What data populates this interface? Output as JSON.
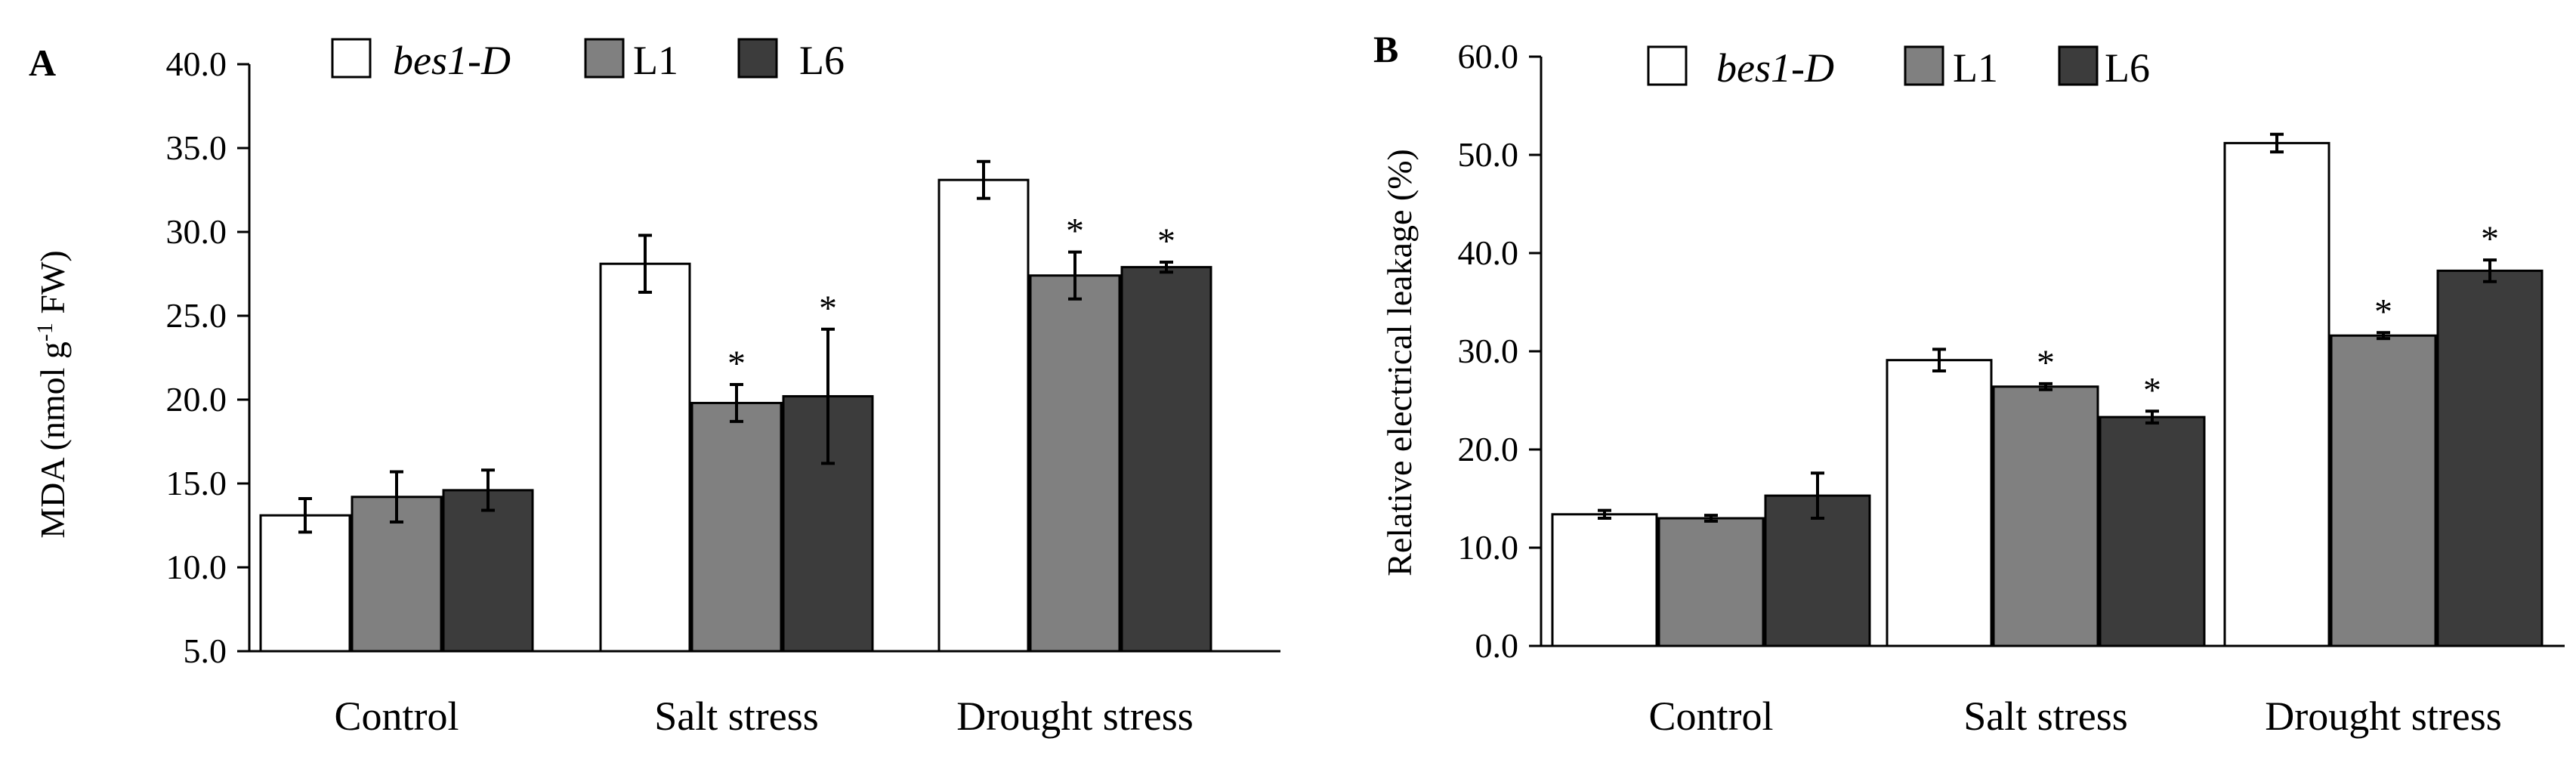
{
  "chart_data": [
    {
      "type": "bar",
      "panel_label": "A",
      "categories": [
        "Control",
        "Salt stress",
        "Drought stress"
      ],
      "series": [
        {
          "name": "bes1-D",
          "values": [
            13.1,
            28.1,
            33.1
          ],
          "errors": [
            1.0,
            1.7,
            1.1
          ],
          "color": "#ffffff"
        },
        {
          "name": "L1",
          "values": [
            14.2,
            19.8,
            27.4
          ],
          "errors": [
            1.5,
            1.1,
            1.4
          ],
          "color": "#808080"
        },
        {
          "name": "L6",
          "values": [
            14.6,
            20.2,
            27.9
          ],
          "errors": [
            1.2,
            4.0,
            0.3
          ],
          "color": "#3c3c3c"
        }
      ],
      "significance": [
        {
          "category": "Salt stress",
          "series": "L1",
          "mark": "*"
        },
        {
          "category": "Salt stress",
          "series": "L6",
          "mark": "*"
        },
        {
          "category": "Drought stress",
          "series": "L1",
          "mark": "*"
        },
        {
          "category": "Drought stress",
          "series": "L6",
          "mark": "*"
        }
      ],
      "ylabel_main": "MDA (nmol g",
      "ylabel_sup": "-1",
      "ylabel_tail": " FW)",
      "ylim": [
        5,
        40
      ],
      "yticks": [
        "5.0",
        "10.0",
        "15.0",
        "20.0",
        "25.0",
        "30.0",
        "35.0",
        "40.0"
      ],
      "legend_position": "top"
    },
    {
      "type": "bar",
      "panel_label": "B",
      "categories": [
        "Control",
        "Salt stress",
        "Drought stress"
      ],
      "series": [
        {
          "name": "bes1-D",
          "values": [
            13.4,
            29.1,
            51.2
          ],
          "errors": [
            0.4,
            1.1,
            0.9
          ],
          "color": "#ffffff"
        },
        {
          "name": "L1",
          "values": [
            13.0,
            26.4,
            31.6
          ],
          "errors": [
            0.3,
            0.3,
            0.3
          ],
          "color": "#808080"
        },
        {
          "name": "L6",
          "values": [
            15.3,
            23.3,
            38.2
          ],
          "errors": [
            2.3,
            0.6,
            1.1
          ],
          "color": "#3c3c3c"
        }
      ],
      "significance": [
        {
          "category": "Salt stress",
          "series": "L1",
          "mark": "*"
        },
        {
          "category": "Salt stress",
          "series": "L6",
          "mark": "*"
        },
        {
          "category": "Drought stress",
          "series": "L1",
          "mark": "*"
        },
        {
          "category": "Drought stress",
          "series": "L6",
          "mark": "*"
        }
      ],
      "ylabel_main": "Relative electrical leakage (%)",
      "ylim": [
        0,
        60
      ],
      "yticks": [
        "0.0",
        "10.0",
        "20.0",
        "30.0",
        "40.0",
        "50.0",
        "60.0"
      ],
      "legend_position": "top"
    }
  ]
}
